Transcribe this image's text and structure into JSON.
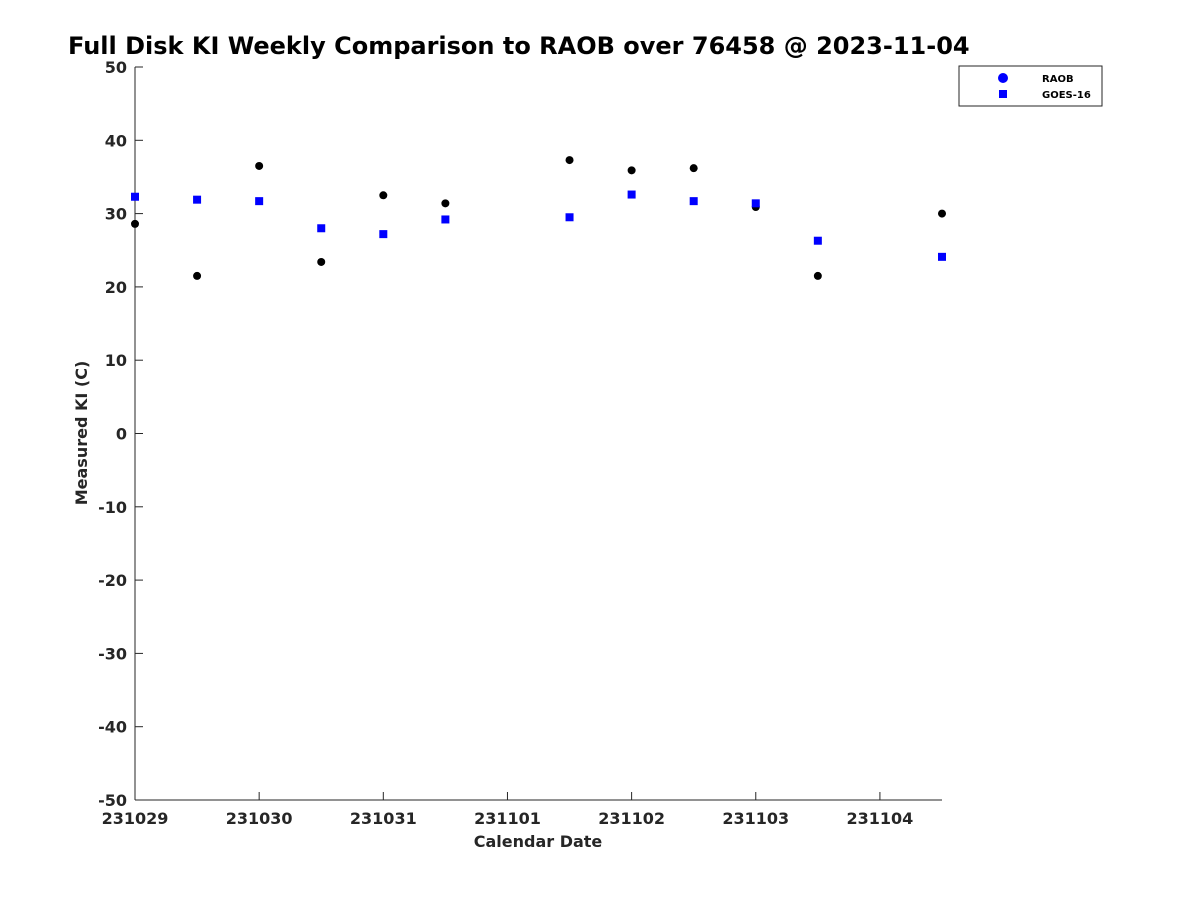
{
  "chart_data": {
    "type": "scatter",
    "title": "Full Disk KI Weekly Comparison to RAOB over 76458 @ 2023-11-04",
    "xlabel": "Calendar Date",
    "ylabel": "Measured KI (C)",
    "x_tick_labels": [
      "231029",
      "231030",
      "231031",
      "231101",
      "231102",
      "231103",
      "231104"
    ],
    "x_tick_values": [
      0,
      1,
      2,
      3,
      4,
      5,
      6
    ],
    "xlim": [
      0,
      6.5
    ],
    "ylim": [
      -50,
      50
    ],
    "y_ticks": [
      50,
      40,
      30,
      20,
      10,
      0,
      -10,
      -20,
      -30,
      -40,
      -50
    ],
    "grid": false,
    "legend_position": "top-right",
    "series": [
      {
        "name": "RAOB",
        "marker": "circle",
        "color": "#000000",
        "legend_color": "#0000ff",
        "points": [
          {
            "x": 0.0,
            "y": 28.6
          },
          {
            "x": 0.5,
            "y": 21.5
          },
          {
            "x": 1.0,
            "y": 36.5
          },
          {
            "x": 1.5,
            "y": 23.4
          },
          {
            "x": 2.0,
            "y": 32.5
          },
          {
            "x": 2.5,
            "y": 31.4
          },
          {
            "x": 3.5,
            "y": 37.3
          },
          {
            "x": 4.0,
            "y": 35.9
          },
          {
            "x": 4.5,
            "y": 36.2
          },
          {
            "x": 5.0,
            "y": 30.9
          },
          {
            "x": 5.5,
            "y": 21.5
          },
          {
            "x": 6.5,
            "y": 30.0
          }
        ]
      },
      {
        "name": "GOES-16",
        "marker": "square",
        "color": "#0000ff",
        "points": [
          {
            "x": 0.0,
            "y": 32.3
          },
          {
            "x": 0.5,
            "y": 31.9
          },
          {
            "x": 1.0,
            "y": 31.7
          },
          {
            "x": 1.5,
            "y": 28.0
          },
          {
            "x": 2.0,
            "y": 27.2
          },
          {
            "x": 2.5,
            "y": 29.2
          },
          {
            "x": 3.5,
            "y": 29.5
          },
          {
            "x": 4.0,
            "y": 32.6
          },
          {
            "x": 4.5,
            "y": 31.7
          },
          {
            "x": 5.0,
            "y": 31.4
          },
          {
            "x": 5.5,
            "y": 26.3
          },
          {
            "x": 6.5,
            "y": 24.1
          }
        ]
      }
    ]
  }
}
